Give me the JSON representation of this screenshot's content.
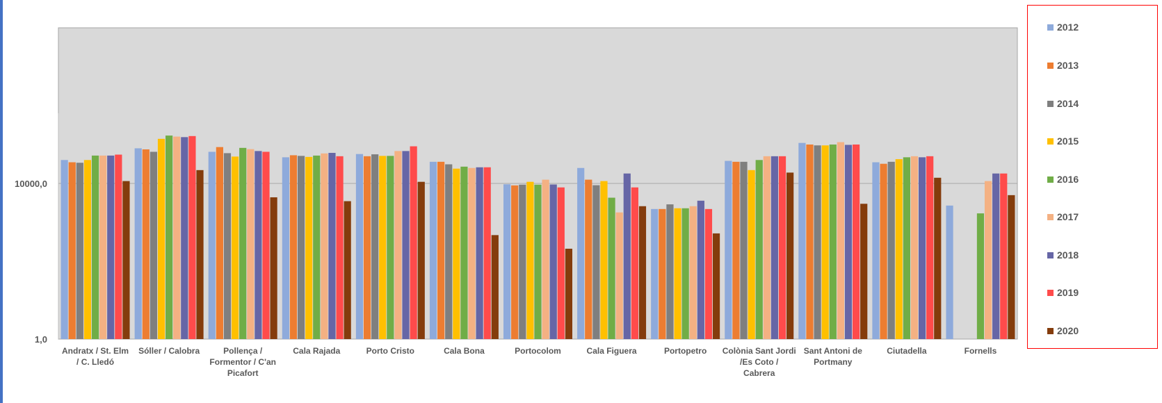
{
  "chart_data": {
    "type": "bar",
    "yscale": "log",
    "ylim": [
      1,
      100000000
    ],
    "yticks": [
      "1,0",
      "10000,0"
    ],
    "ytick_values": [
      1,
      10000
    ],
    "grid": true,
    "legend_position": "right",
    "categories": [
      [
        "Andratx / St. Elm",
        "/ C. Lledó"
      ],
      [
        "Sóller / Calobra"
      ],
      [
        "Pollença /",
        "Formentor / C'an",
        "Picafort"
      ],
      [
        "Cala Rajada"
      ],
      [
        "Porto Cristo"
      ],
      [
        "Cala Bona"
      ],
      [
        "Portocolom"
      ],
      [
        "Cala Figuera"
      ],
      [
        "Portopetro"
      ],
      [
        "Colònia Sant Jordi",
        "/Es Coto /",
        "Cabrera"
      ],
      [
        "Sant Antoni de",
        "Portmany"
      ],
      [
        "Ciutadella"
      ],
      [
        "Fornells"
      ]
    ],
    "series": [
      {
        "name": "2012",
        "color": "#8eaadb",
        "values": [
          40000,
          80000,
          65000,
          47000,
          57000,
          36000,
          9500,
          25000,
          2200,
          38000,
          110000,
          35000,
          2700
        ]
      },
      {
        "name": "2013",
        "color": "#ed7d31",
        "values": [
          35000,
          75000,
          86000,
          53000,
          50000,
          36000,
          8900,
          12500,
          2200,
          36000,
          100000,
          32000,
          null
        ]
      },
      {
        "name": "2014",
        "color": "#7f7f7f",
        "values": [
          34000,
          65000,
          60000,
          51000,
          56000,
          31000,
          9300,
          9000,
          2900,
          36000,
          95000,
          36000,
          null
        ]
      },
      {
        "name": "2015",
        "color": "#ffc000",
        "values": [
          40000,
          140000,
          49000,
          48000,
          51000,
          24000,
          11000,
          11500,
          2300,
          22000,
          95000,
          42000,
          null
        ]
      },
      {
        "name": "2016",
        "color": "#70ad47",
        "values": [
          52000,
          170000,
          82000,
          52000,
          51000,
          27000,
          9300,
          4300,
          2300,
          40000,
          100000,
          47000,
          1700
        ]
      },
      {
        "name": "2017",
        "color": "#f4b183",
        "values": [
          52000,
          160000,
          76000,
          59000,
          68000,
          25000,
          12500,
          1800,
          2600,
          50000,
          115000,
          50000,
          11500
        ]
      },
      {
        "name": "2018",
        "color": "#6666a6",
        "values": [
          52000,
          155000,
          68000,
          61000,
          68000,
          26000,
          9400,
          18000,
          3600,
          50000,
          98000,
          47000,
          18000
        ]
      },
      {
        "name": "2019",
        "color": "#ff4b4b",
        "values": [
          55000,
          165000,
          65000,
          50000,
          90000,
          26000,
          7900,
          7900,
          2200,
          50000,
          100000,
          50000,
          18000
        ]
      },
      {
        "name": "2020",
        "color": "#843c0c",
        "values": [
          11500,
          22000,
          4400,
          3500,
          11000,
          470,
          210,
          2600,
          520,
          19000,
          3000,
          14000,
          5000
        ]
      }
    ]
  }
}
